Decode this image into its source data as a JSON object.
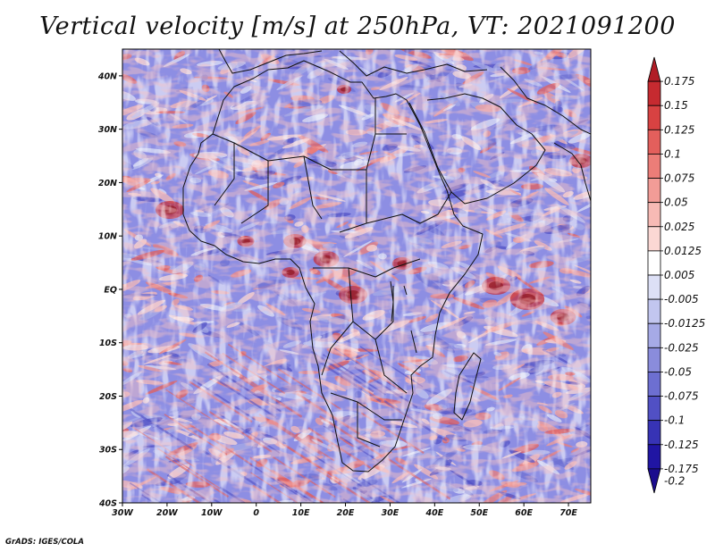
{
  "title": "Vertical velocity [m/s] at 250hPa, VT: 2021091200",
  "footer": "GrADS: IGES/COLA",
  "map": {
    "lon_range": [
      -30,
      75
    ],
    "lat_range": [
      -40,
      45
    ],
    "lat_ticks": [
      {
        "lat": 40,
        "label": "40N"
      },
      {
        "lat": 30,
        "label": "30N"
      },
      {
        "lat": 20,
        "label": "20N"
      },
      {
        "lat": 10,
        "label": "10N"
      },
      {
        "lat": 0,
        "label": "EQ"
      },
      {
        "lat": -10,
        "label": "10S"
      },
      {
        "lat": -20,
        "label": "20S"
      },
      {
        "lat": -30,
        "label": "30S"
      },
      {
        "lat": -40,
        "label": "40S"
      }
    ],
    "lon_ticks": [
      {
        "lon": -30,
        "label": "30W"
      },
      {
        "lon": -20,
        "label": "20W"
      },
      {
        "lon": -10,
        "label": "10W"
      },
      {
        "lon": 0,
        "label": "0"
      },
      {
        "lon": 10,
        "label": "10E"
      },
      {
        "lon": 20,
        "label": "20E"
      },
      {
        "lon": 30,
        "label": "30E"
      },
      {
        "lon": 40,
        "label": "40E"
      },
      {
        "lon": 50,
        "label": "50E"
      },
      {
        "lon": 60,
        "label": "60E"
      },
      {
        "lon": 70,
        "label": "70E"
      }
    ]
  },
  "colorbar": {
    "labels": [
      "0.175",
      "0.15",
      "0.125",
      "0.1",
      "0.075",
      "0.05",
      "0.025",
      "0.0125",
      "0.005",
      "-0.005",
      "-0.0125",
      "-0.025",
      "-0.05",
      "-0.075",
      "-0.1",
      "-0.125",
      "-0.175",
      "-0.2"
    ],
    "colors": [
      "#b01d26",
      "#c62a30",
      "#d84242",
      "#e35f5c",
      "#ec7d78",
      "#f29c97",
      "#f7bab5",
      "#fbd8d4",
      "#ffffff",
      "#dde0f6",
      "#c2c6ef",
      "#a6aae6",
      "#8a8cdc",
      "#6d6fd1",
      "#5150c4",
      "#3733b5",
      "#2015a3",
      "#1b0c8e"
    ]
  }
}
